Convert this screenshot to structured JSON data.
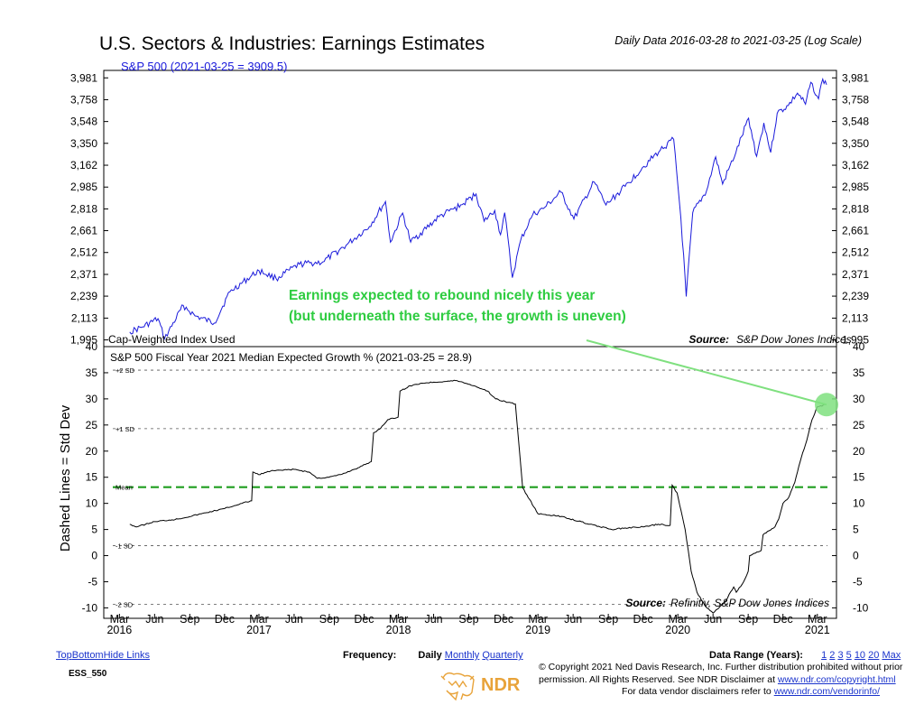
{
  "title": "U.S. Sectors & Industries: Earnings Estimates",
  "subtitle": "Daily Data 2016-03-28 to 2021-03-25 (Log Scale)",
  "footer": {
    "links_left": [
      "Top",
      "Bottom",
      "Hide Links"
    ],
    "code": "ESS_550",
    "frequency_label": "Frequency:",
    "frequency_current": "Daily",
    "frequency_links": [
      "Monthly",
      "Quarterly"
    ],
    "range_label": "Data Range (Years):",
    "range_links": [
      "1",
      "2",
      "3",
      "5",
      "10",
      "20",
      "Max"
    ],
    "copyright_1": "© Copyright 2021 Ned Davis Research, Inc. Further distribution prohibited without prior",
    "copyright_2a": "permission. All Rights Reserved. See NDR Disclaimer at ",
    "copyright_2_link": "www.ndr.com/copyright.html",
    "copyright_3a": "For data vendor disclaimers refer to ",
    "copyright_3_link": "www.ndr.com/vendorinfo/",
    "logo_text": "NDR"
  },
  "colors": {
    "sp500": "#1a1adb",
    "growth": "#000000",
    "mean_line": "#1f9d1f",
    "annotation": "#2ecc40",
    "highlight": "#7fe07f"
  },
  "chart_data": [
    {
      "type": "line",
      "title": "S&P 500 (2021-03-25 = 3909.5)",
      "scale": "log",
      "yticks": [
        1995,
        2113,
        2239,
        2371,
        2512,
        2661,
        2818,
        2985,
        3162,
        3350,
        3548,
        3758,
        3981
      ],
      "ylim": [
        1960,
        4060
      ],
      "footnote_left": "Cap-Weighted Index Used",
      "source_label": "Source:",
      "source": "S&P Dow Jones Indices",
      "series": [
        {
          "x": [
            "2016-03-28",
            "2016-05-01",
            "2016-06-10",
            "2016-06-27",
            "2016-08-15",
            "2016-09-15",
            "2016-11-04",
            "2016-12-15",
            "2017-03-01",
            "2017-04-15",
            "2017-06-15",
            "2017-08-15",
            "2017-10-15",
            "2017-12-15",
            "2018-01-26",
            "2018-02-08",
            "2018-03-12",
            "2018-04-02",
            "2018-06-15",
            "2018-08-15",
            "2018-09-20",
            "2018-10-11",
            "2018-11-08",
            "2018-11-23",
            "2018-12-04",
            "2018-12-24",
            "2019-01-15",
            "2019-02-15",
            "2019-03-15",
            "2019-04-30",
            "2019-06-03",
            "2019-07-26",
            "2019-08-26",
            "2019-10-15",
            "2019-11-29",
            "2020-01-15",
            "2020-02-19",
            "2020-03-09",
            "2020-03-23",
            "2020-04-09",
            "2020-05-15",
            "2020-06-08",
            "2020-06-26",
            "2020-07-31",
            "2020-09-02",
            "2020-09-23",
            "2020-10-12",
            "2020-10-30",
            "2020-11-16",
            "2020-12-15",
            "2021-01-08",
            "2021-01-29",
            "2021-02-12",
            "2021-03-04",
            "2021-03-15",
            "2021-03-25"
          ],
          "y": [
            2037,
            2065,
            2110,
            2000,
            2185,
            2125,
            2085,
            2265,
            2395,
            2345,
            2435,
            2450,
            2560,
            2690,
            2873,
            2581,
            2787,
            2582,
            2760,
            2850,
            2931,
            2728,
            2806,
            2633,
            2790,
            2351,
            2596,
            2775,
            2820,
            2945,
            2744,
            3025,
            2847,
            2990,
            3141,
            3289,
            3386,
            2747,
            2237,
            2790,
            2955,
            3232,
            3009,
            3271,
            3580,
            3237,
            3535,
            3270,
            3626,
            3701,
            3824,
            3714,
            3934,
            3768,
            3968,
            3909.5
          ]
        }
      ]
    },
    {
      "type": "line",
      "title": "S&P 500 Fiscal Year 2021 Median Expected Growth % (2021-03-25 = 28.9)",
      "ylabel": "Dashed Lines = Std Dev",
      "yticks": [
        -10,
        -5,
        0,
        5,
        10,
        15,
        20,
        25,
        30,
        35,
        40
      ],
      "ylim": [
        -12,
        40
      ],
      "reference_lines": [
        {
          "label": "+2 SD",
          "value": 35.5
        },
        {
          "label": "+1 SD",
          "value": 24.3
        },
        {
          "label": "Mean",
          "value": 13.1
        },
        {
          "label": "-1 SD",
          "value": 1.9
        },
        {
          "label": "-2 SD",
          "value": -9.3
        }
      ],
      "source_label": "Source:",
      "source": "Refinitiv, S&P Dow Jones Indices",
      "series": [
        {
          "x": [
            "2016-03-28",
            "2016-04-15",
            "2016-06-01",
            "2016-08-01",
            "2016-10-01",
            "2016-12-01",
            "2017-01-15",
            "2017-02-10",
            "2017-02-13",
            "2017-02-28",
            "2017-04-01",
            "2017-06-01",
            "2017-07-10",
            "2017-08-01",
            "2017-08-31",
            "2017-10-01",
            "2017-11-15",
            "2017-12-20",
            "2017-12-26",
            "2018-01-10",
            "2018-02-01",
            "2018-02-28",
            "2018-03-05",
            "2018-04-01",
            "2018-05-01",
            "2018-06-01",
            "2018-08-01",
            "2018-09-15",
            "2018-10-20",
            "2018-11-10",
            "2018-12-05",
            "2019-01-01",
            "2019-01-20",
            "2019-03-01",
            "2019-05-01",
            "2019-07-15",
            "2019-09-10",
            "2019-10-15",
            "2019-12-01",
            "2020-01-10",
            "2020-02-10",
            "2020-02-15",
            "2020-02-28",
            "2020-03-20",
            "2020-04-05",
            "2020-04-20",
            "2020-05-10",
            "2020-06-01",
            "2020-07-01",
            "2020-07-25",
            "2020-08-01",
            "2020-08-20",
            "2020-09-01",
            "2020-09-05",
            "2020-10-05",
            "2020-10-10",
            "2020-11-10",
            "2020-11-20",
            "2020-12-01",
            "2020-12-15",
            "2021-01-01",
            "2021-01-15",
            "2021-02-01",
            "2021-02-15",
            "2021-03-01",
            "2021-03-25"
          ],
          "y": [
            6.0,
            5.5,
            6.5,
            7.0,
            8.0,
            9.0,
            10.0,
            10.5,
            16.0,
            15.5,
            16.2,
            16.5,
            16.0,
            14.8,
            15.0,
            15.5,
            16.8,
            18.0,
            23.5,
            24.2,
            26.0,
            26.5,
            31.5,
            32.5,
            33.0,
            33.2,
            33.5,
            32.5,
            31.5,
            30.0,
            29.5,
            29.0,
            13.0,
            8.0,
            7.5,
            6.0,
            5.0,
            5.3,
            5.5,
            6.0,
            5.8,
            13.5,
            12.0,
            5.0,
            -3.0,
            -7.0,
            -9.5,
            -11.0,
            -9.0,
            -6.0,
            -7.0,
            -5.0,
            -3.0,
            0.0,
            1.0,
            4.0,
            5.5,
            7.0,
            10.0,
            11.0,
            14.0,
            18.0,
            22.0,
            26.0,
            28.5,
            28.9
          ]
        }
      ],
      "annotation": [
        "Earnings expected to rebound nicely this year",
        "(but underneath the surface, the growth is uneven)"
      ]
    }
  ],
  "x_axis": {
    "months": [
      "Mar",
      "Jun",
      "Sep",
      "Dec",
      "Mar",
      "Jun",
      "Sep",
      "Dec",
      "Mar",
      "Jun",
      "Sep",
      "Dec",
      "Mar",
      "Jun",
      "Sep",
      "Dec",
      "Mar",
      "Jun",
      "Sep",
      "Dec",
      "Mar"
    ],
    "month_dates": [
      "2016-03-01",
      "2016-06-01",
      "2016-09-01",
      "2016-12-01",
      "2017-03-01",
      "2017-06-01",
      "2017-09-01",
      "2017-12-01",
      "2018-03-01",
      "2018-06-01",
      "2018-09-01",
      "2018-12-01",
      "2019-03-01",
      "2019-06-01",
      "2019-09-01",
      "2019-12-01",
      "2020-03-01",
      "2020-06-01",
      "2020-09-01",
      "2020-12-01",
      "2021-03-01"
    ],
    "years": [
      "2016",
      "2017",
      "2018",
      "2019",
      "2020",
      "2021"
    ],
    "year_dates": [
      "2016-03-01",
      "2017-03-01",
      "2018-03-01",
      "2019-03-01",
      "2020-03-01",
      "2021-03-01"
    ]
  }
}
